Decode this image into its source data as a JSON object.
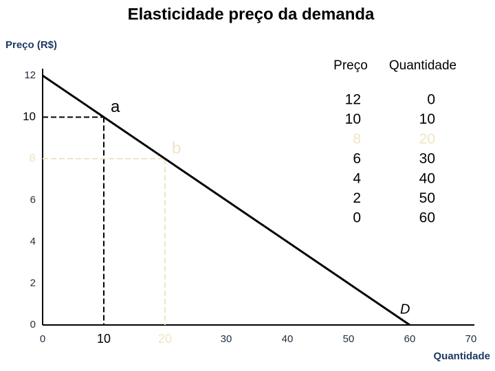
{
  "chart_data": {
    "type": "line",
    "title": "Elasticidade preço da demanda",
    "y_label": "Preço (R$)",
    "x_label": "Quantidade",
    "x": [
      0,
      60
    ],
    "series": [
      {
        "name": "D",
        "color": "#000000",
        "values": [
          12,
          0
        ]
      }
    ],
    "xlim": [
      0,
      70
    ],
    "xticks": [
      0,
      10,
      20,
      30,
      40,
      50,
      60,
      70
    ],
    "ylim": [
      0,
      12
    ],
    "yticks": [
      0,
      2,
      4,
      6,
      8,
      10,
      12
    ],
    "annotations": [
      {
        "text": "a",
        "x": 10,
        "y": 10,
        "color": "#000000"
      },
      {
        "text": "b",
        "x": 20,
        "y": 8,
        "color": "#efe4c4"
      }
    ],
    "table": {
      "headers": [
        "Preço",
        "Quantidade"
      ],
      "rows": [
        [
          12,
          0
        ],
        [
          10,
          10
        ],
        [
          8,
          20
        ],
        [
          6,
          30
        ],
        [
          4,
          40
        ],
        [
          2,
          50
        ],
        [
          0,
          60
        ]
      ]
    }
  }
}
